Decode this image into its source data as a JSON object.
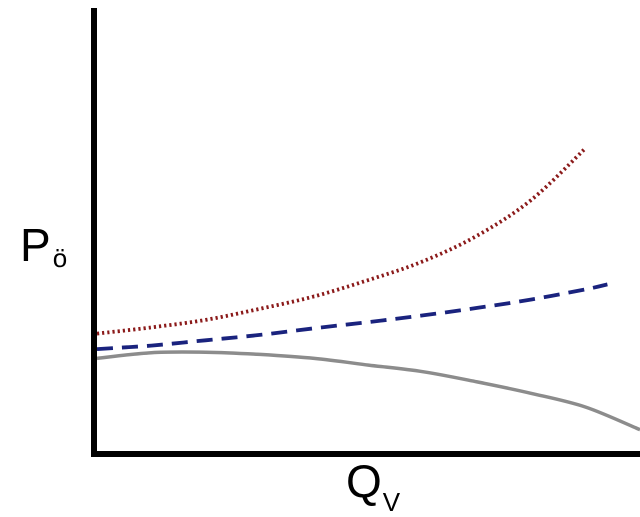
{
  "chart_data": {
    "type": "line",
    "title": "",
    "xlabel": {
      "main": "Q",
      "sub": "V"
    },
    "ylabel": {
      "main": "P",
      "sub": "ö"
    },
    "xlim": [
      0,
      100
    ],
    "ylim": [
      0,
      100
    ],
    "ticks": false,
    "grid": false,
    "legend": "none",
    "series": [
      {
        "color": "#8b1a1a",
        "dash": "dotted",
        "x": [
          0,
          10,
          20,
          30,
          40,
          50,
          60,
          70,
          80,
          90
        ],
        "y": [
          26.5,
          27.9,
          29.6,
          32.1,
          34.9,
          38.6,
          42.8,
          48.6,
          56.7,
          68.4
        ]
      },
      {
        "color": "#1a237e",
        "dash": "dashed",
        "x": [
          0,
          10,
          20,
          30,
          40,
          50,
          60,
          70,
          80,
          90,
          94
        ],
        "y": [
          23.0,
          23.8,
          25.0,
          26.2,
          27.7,
          29.1,
          30.6,
          32.3,
          34.2,
          36.5,
          37.6
        ]
      },
      {
        "color": "#8c8c8c",
        "dash": "solid",
        "x": [
          0,
          10,
          20,
          30,
          40,
          50,
          60,
          70,
          80,
          90,
          100
        ],
        "y": [
          20.9,
          22.2,
          22.3,
          21.8,
          20.9,
          19.4,
          17.9,
          15.6,
          13.0,
          9.9,
          4.8
        ]
      }
    ]
  }
}
